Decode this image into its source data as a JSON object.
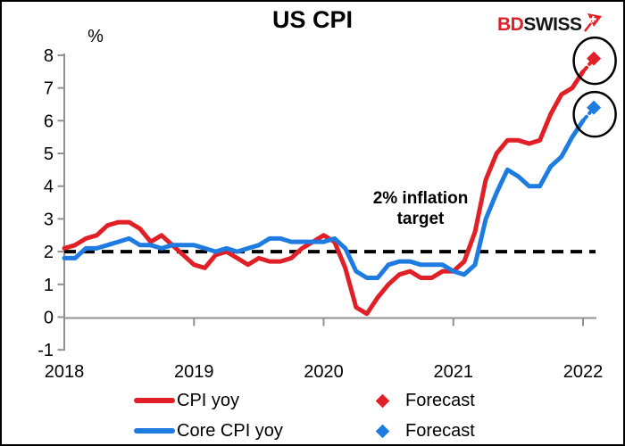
{
  "logo": {
    "bd": "BD",
    "swiss": "SWISS"
  },
  "chart_data": {
    "type": "line",
    "title": "US CPI",
    "ylabel": "%",
    "xlabel": "",
    "frequency": "monthly",
    "x_start": "2018-01",
    "x_end": "2022-01",
    "forecast_x": "2022-02",
    "x_tick_labels": [
      "2018",
      "2019",
      "2020",
      "2021",
      "2022"
    ],
    "y_ticks": [
      -1,
      0,
      1,
      2,
      3,
      4,
      5,
      6,
      7,
      8
    ],
    "ylim": [
      -1,
      8
    ],
    "grid": "off",
    "legend_position": "bottom",
    "axis_color": "#909090",
    "series": [
      {
        "name": "CPI yoy",
        "color": "#e02026",
        "values": [
          2.1,
          2.2,
          2.4,
          2.5,
          2.8,
          2.9,
          2.9,
          2.7,
          2.3,
          2.5,
          2.2,
          1.9,
          1.6,
          1.5,
          1.9,
          2.0,
          1.8,
          1.6,
          1.8,
          1.7,
          1.7,
          1.8,
          2.1,
          2.3,
          2.5,
          2.3,
          1.5,
          0.3,
          0.1,
          0.6,
          1.0,
          1.3,
          1.4,
          1.2,
          1.2,
          1.4,
          1.4,
          1.7,
          2.6,
          4.2,
          5.0,
          5.4,
          5.4,
          5.3,
          5.4,
          6.2,
          6.8,
          7.0,
          7.5
        ],
        "forecast_label": "Forecast",
        "forecast_value": 7.9
      },
      {
        "name": "Core CPI yoy",
        "color": "#1e7ce0",
        "values": [
          1.8,
          1.8,
          2.1,
          2.1,
          2.2,
          2.3,
          2.4,
          2.2,
          2.2,
          2.1,
          2.2,
          2.2,
          2.2,
          2.1,
          2.0,
          2.1,
          2.0,
          2.1,
          2.2,
          2.4,
          2.4,
          2.3,
          2.3,
          2.3,
          2.3,
          2.4,
          2.1,
          1.4,
          1.2,
          1.2,
          1.6,
          1.7,
          1.7,
          1.6,
          1.6,
          1.6,
          1.4,
          1.3,
          1.6,
          3.0,
          3.8,
          4.5,
          4.3,
          4.0,
          4.0,
          4.6,
          4.9,
          5.5,
          6.0
        ],
        "forecast_label": "Forecast",
        "forecast_value": 6.4
      }
    ],
    "reference_line": {
      "value": 2,
      "style": "dashed",
      "color": "#000000",
      "annotation": "2% inflation target"
    },
    "highlight_circles": "around forecast markers"
  }
}
